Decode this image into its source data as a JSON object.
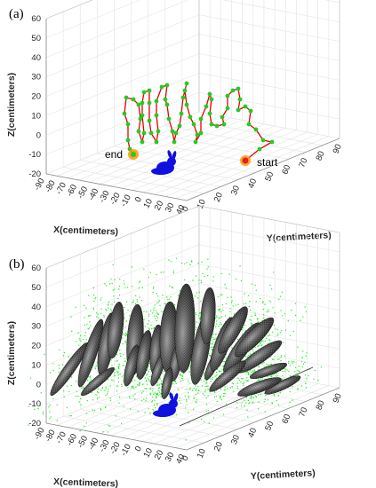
{
  "figure": {
    "panels": [
      {
        "id": "a",
        "label": "(a)",
        "chart_data": {
          "type": "line3d",
          "zlabel": "Z(centimeters)",
          "xlabel": "X(centimeters)",
          "ylabel": "Y(centimeters)",
          "zticks": [
            "-20",
            "-10",
            "0",
            "10",
            "20",
            "30",
            "40",
            "50",
            "60"
          ],
          "xticks": [
            "-90",
            "-80",
            "-70",
            "-60",
            "-50",
            "-40",
            "-30",
            "-20",
            "-10",
            "0",
            "10",
            "20",
            "30",
            "40"
          ],
          "yticks": [
            "0",
            "10",
            "20",
            "30",
            "40",
            "50",
            "60",
            "70",
            "80",
            "90"
          ],
          "xlim": [
            -90,
            40
          ],
          "ylim": [
            0,
            90
          ],
          "zlim": [
            -20,
            60
          ],
          "grid": true,
          "annotations": [
            {
              "text": "end",
              "target": "trajectory-end"
            },
            {
              "text": "start",
              "target": "trajectory-start"
            }
          ],
          "colors": {
            "path": "#e60000",
            "points": "#22cc22",
            "endpoint": "#ff9900",
            "object": "#1010e0"
          }
        }
      },
      {
        "id": "b",
        "label": "(b)",
        "chart_data": {
          "type": "scatter3d",
          "zlabel": "Z(centimeters)",
          "xlabel": "X(centimeters)",
          "ylabel": "Y(centimeters)",
          "zticks": [
            "-20",
            "-10",
            "0",
            "10",
            "20",
            "30",
            "40",
            "50",
            "60"
          ],
          "xticks": [
            "-90",
            "-80",
            "-70",
            "-60",
            "-50",
            "-40",
            "-30",
            "-20",
            "-10",
            "0",
            "10",
            "20",
            "30",
            "40"
          ],
          "yticks": [
            "0",
            "10",
            "20",
            "30",
            "40",
            "50",
            "60",
            "70",
            "80",
            "90"
          ],
          "xlim": [
            -90,
            40
          ],
          "ylim": [
            0,
            90
          ],
          "zlim": [
            -20,
            60
          ],
          "grid": true,
          "colors": {
            "points": "#22ee22",
            "ellipsoids": "#444444",
            "object": "#1010e0"
          }
        }
      }
    ]
  }
}
